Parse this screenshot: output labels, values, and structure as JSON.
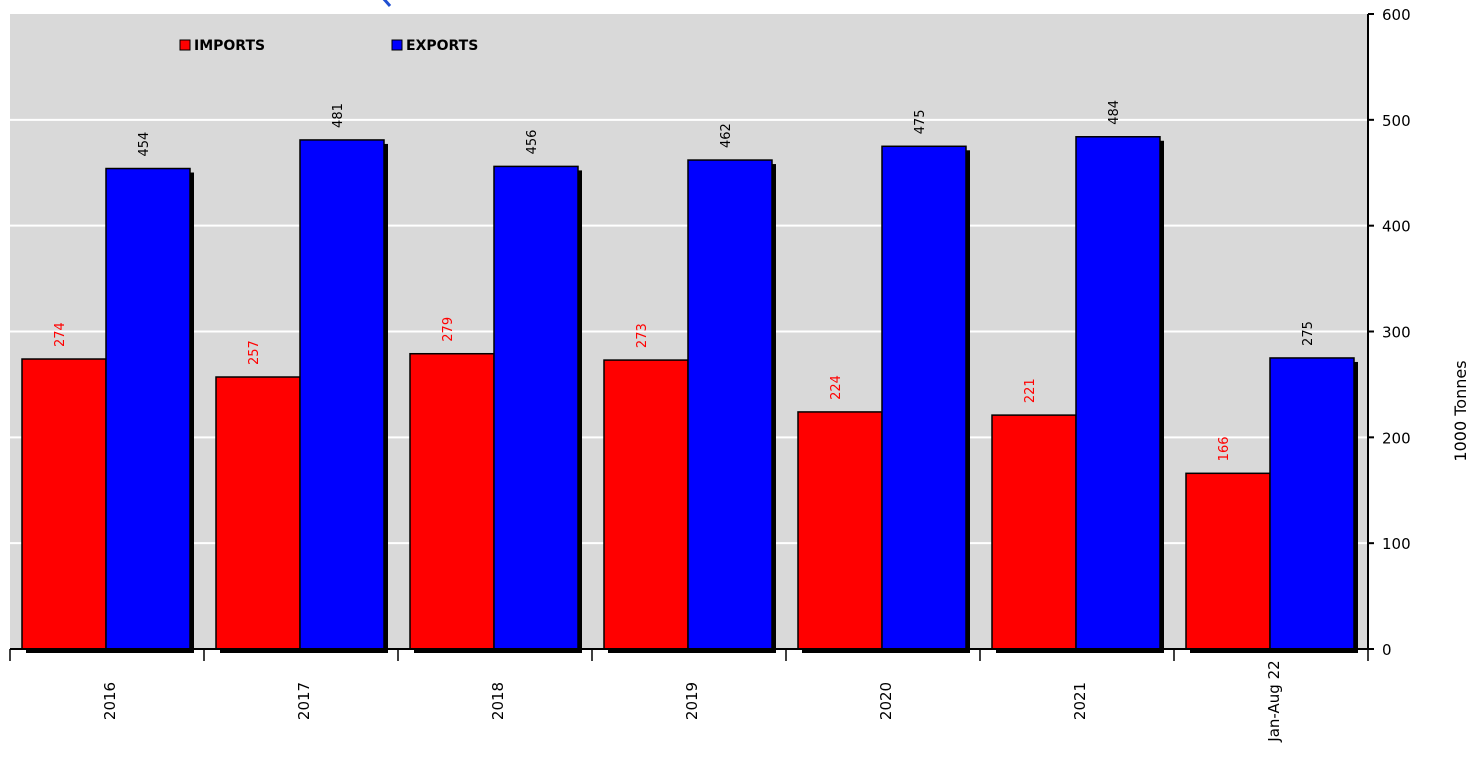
{
  "colors": {
    "background": "#ffffff",
    "plot_bg": "#d9d9d9",
    "imports": "#ff0000",
    "exports": "#0000ff",
    "shadow": "#000000",
    "grid": "#ffffff",
    "text": "#000000",
    "cropped_title": "#1f4fd1"
  },
  "chart_data": {
    "type": "bar",
    "categories": [
      "2016",
      "2017",
      "2018",
      "2019",
      "2020",
      "2021",
      "Jan-Aug 22"
    ],
    "series": [
      {
        "name": "IMPORTS",
        "color": "#ff0000",
        "values": [
          274,
          257,
          279,
          273,
          224,
          221,
          166
        ]
      },
      {
        "name": "EXPORTS",
        "color": "#0000ff",
        "values": [
          454,
          481,
          456,
          462,
          475,
          484,
          275
        ]
      }
    ],
    "title": "",
    "xlabel": "",
    "ylabel": "1000 Tonnes",
    "ylim": [
      0,
      600
    ],
    "yticks": [
      0,
      100,
      200,
      300,
      400,
      500,
      600
    ],
    "grid": true,
    "legend": "top-left",
    "y_axis_side": "right"
  }
}
